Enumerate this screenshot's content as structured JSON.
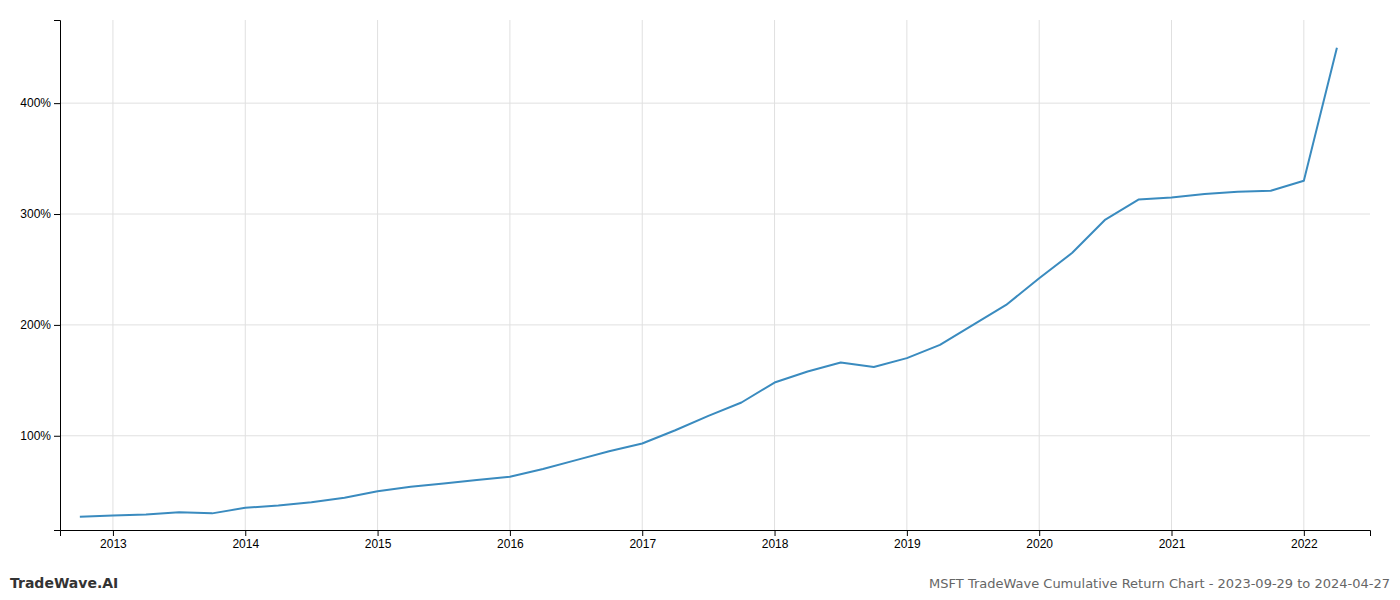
{
  "chart_data": {
    "type": "line",
    "title": "MSFT TradeWave Cumulative Return Chart - 2023-09-29 to 2024-04-27",
    "annotations": [
      "TradeWave.AI"
    ],
    "x": [
      2012.75,
      2013.0,
      2013.25,
      2013.5,
      2013.75,
      2014.0,
      2014.25,
      2014.5,
      2014.75,
      2015.0,
      2015.25,
      2015.5,
      2015.75,
      2016.0,
      2016.25,
      2016.5,
      2016.75,
      2017.0,
      2017.25,
      2017.5,
      2017.75,
      2018.0,
      2018.25,
      2018.5,
      2018.75,
      2019.0,
      2019.25,
      2019.5,
      2019.75,
      2020.0,
      2020.25,
      2020.5,
      2020.75,
      2021.0,
      2021.25,
      2021.5,
      2021.75,
      2022.0,
      2022.25
    ],
    "values": [
      27,
      28,
      29,
      31,
      30,
      35,
      37,
      40,
      44,
      50,
      54,
      57,
      60,
      63,
      70,
      78,
      86,
      93,
      105,
      118,
      130,
      148,
      158,
      166,
      162,
      170,
      182,
      200,
      218,
      242,
      265,
      295,
      313,
      315,
      318,
      320,
      321,
      330,
      450
    ],
    "color": "#3a8bbf",
    "xlim": [
      2012.6,
      2022.5
    ],
    "xticks": [
      2013,
      2014,
      2015,
      2016,
      2017,
      2018,
      2019,
      2020,
      2021,
      2022
    ],
    "ylim": [
      15,
      475
    ],
    "yticks": [
      {
        "value": 100,
        "label": "100%"
      },
      {
        "value": 200,
        "label": "200%"
      },
      {
        "value": 300,
        "label": "300%"
      },
      {
        "value": 400,
        "label": "400%"
      }
    ],
    "grid": true
  }
}
